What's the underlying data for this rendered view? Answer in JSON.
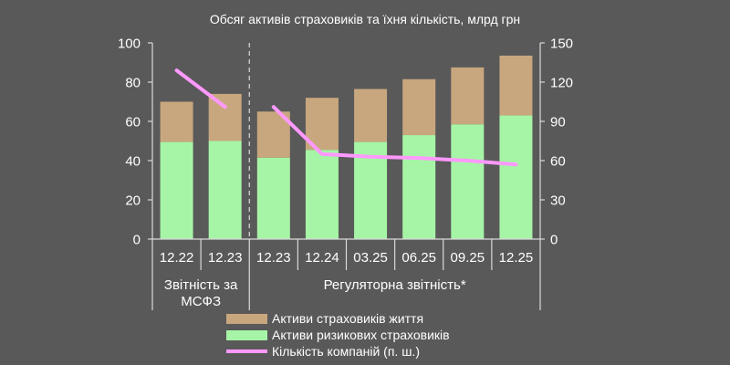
{
  "chart_data": {
    "type": "bar",
    "title": "Обсяг активів страховиків та їхня кількість, млрд грн",
    "stacked": true,
    "categories": [
      "12.22",
      "12.23",
      "12.23",
      "12.24",
      "03.25",
      "06.25",
      "09.25",
      "12.25"
    ],
    "groups": [
      {
        "label": "Звітність за МСФЗ",
        "start": 0,
        "count": 2
      },
      {
        "label": "Регуляторна звітність*",
        "start": 2,
        "count": 6
      }
    ],
    "series": [
      {
        "name": "Активи ризикових страховиків",
        "axis": "left",
        "type": "bar",
        "color": "#a6f5a6",
        "values": [
          49.5,
          50,
          41.5,
          45.5,
          49.5,
          53,
          58.5,
          63
        ]
      },
      {
        "name": "Активи страховиків життя",
        "axis": "left",
        "type": "bar",
        "color": "#c8a77e",
        "values": [
          20.5,
          24,
          23.5,
          26.5,
          27,
          28.5,
          29,
          30.5
        ]
      },
      {
        "name": "Кількість компаній (п. ш.)",
        "axis": "right",
        "type": "line",
        "color": "#ff99ff",
        "segments": [
          {
            "indices": [
              0,
              1
            ],
            "values": [
              129,
              101
            ]
          },
          {
            "indices": [
              2,
              3,
              4,
              5,
              6,
              7
            ],
            "values": [
              101,
              65,
              63,
              62,
              60,
              57
            ]
          }
        ]
      }
    ],
    "legend": [
      {
        "name": "Активи страховиків життя",
        "kind": "bar",
        "color": "#c8a77e"
      },
      {
        "name": "Активи ризикових страховиків",
        "kind": "bar",
        "color": "#a6f5a6"
      },
      {
        "name": "Кількість компаній (п. ш.)",
        "kind": "line",
        "color": "#ff99ff"
      }
    ],
    "y_left": {
      "min": 0,
      "max": 100,
      "ticks": [
        0,
        20,
        40,
        60,
        80,
        100
      ]
    },
    "y_right": {
      "min": 0,
      "max": 150,
      "ticks": [
        0,
        30,
        60,
        90,
        120,
        150
      ]
    },
    "grid": false,
    "legend_position": "bottom-center"
  }
}
